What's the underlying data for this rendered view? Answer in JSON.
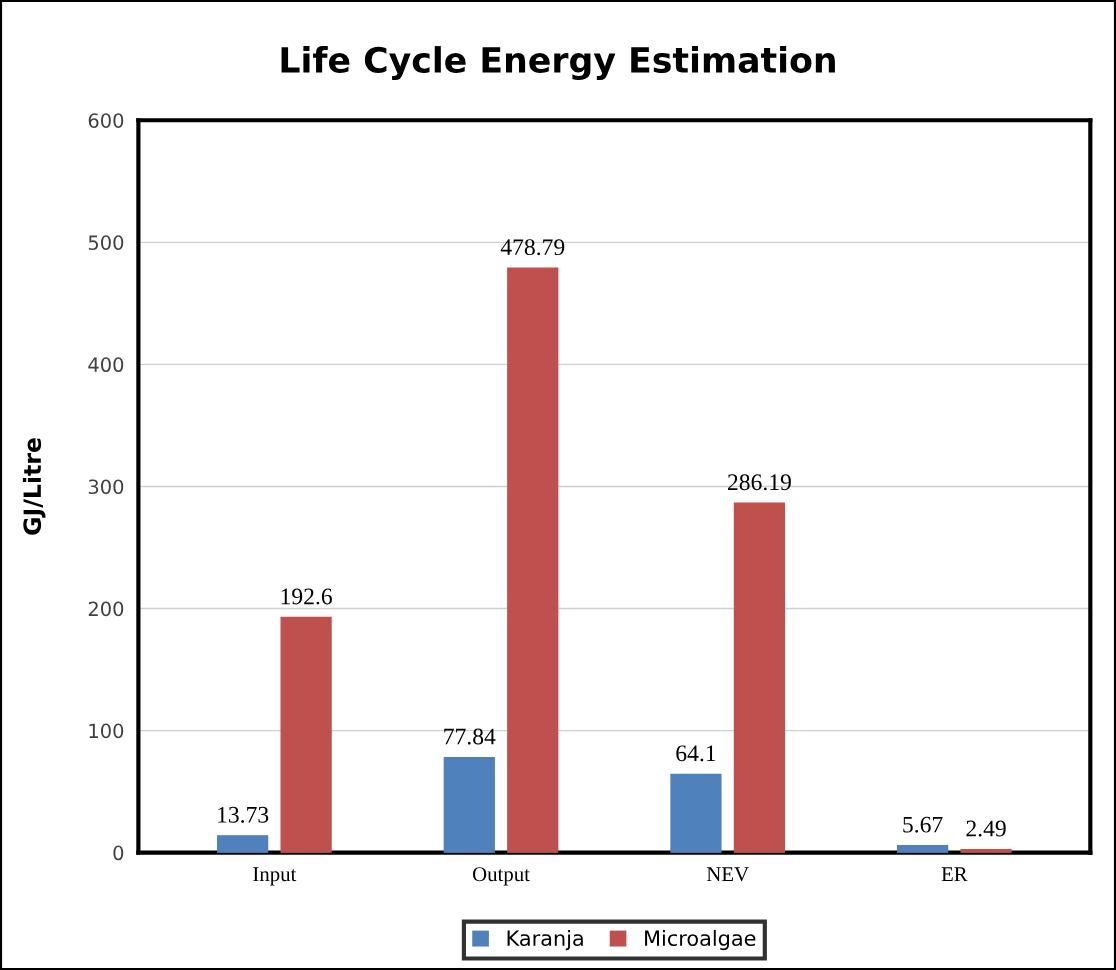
{
  "chart_data": {
    "type": "bar",
    "title": "Life Cycle Energy Estimation",
    "ylabel": "GJ/Litre",
    "categories": [
      "Input",
      "Output",
      "NEV",
      "ER"
    ],
    "series": [
      {
        "name": "Karanja",
        "color": "#4f81bd",
        "values": [
          13.73,
          77.84,
          64.1,
          5.67
        ]
      },
      {
        "name": "Microalgae",
        "color": "#c0504d",
        "values": [
          192.6,
          478.79,
          286.19,
          2.49
        ]
      }
    ],
    "ylim": [
      0,
      600
    ],
    "yticks": [
      0,
      100,
      200,
      300,
      400,
      500,
      600
    ],
    "grid": "y",
    "legend": "bottom",
    "data_labels": true
  }
}
